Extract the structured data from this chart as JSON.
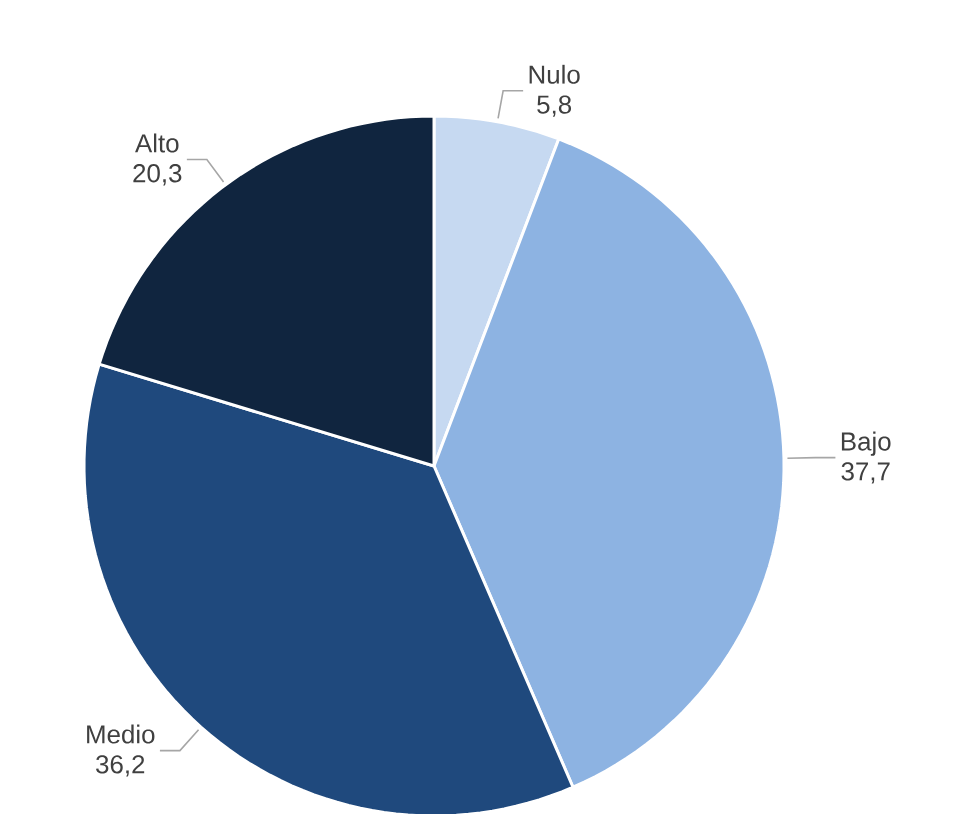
{
  "chart_data": {
    "type": "pie",
    "categories": [
      "Nulo",
      "Bajo",
      "Medio",
      "Alto"
    ],
    "values": [
      5.8,
      37.7,
      36.2,
      20.3
    ],
    "value_labels": [
      "5,8",
      "37,7",
      "36,2",
      "20,3"
    ],
    "colors": [
      "#c6d9f1",
      "#8db3e2",
      "#1f497d",
      "#10253f"
    ]
  }
}
